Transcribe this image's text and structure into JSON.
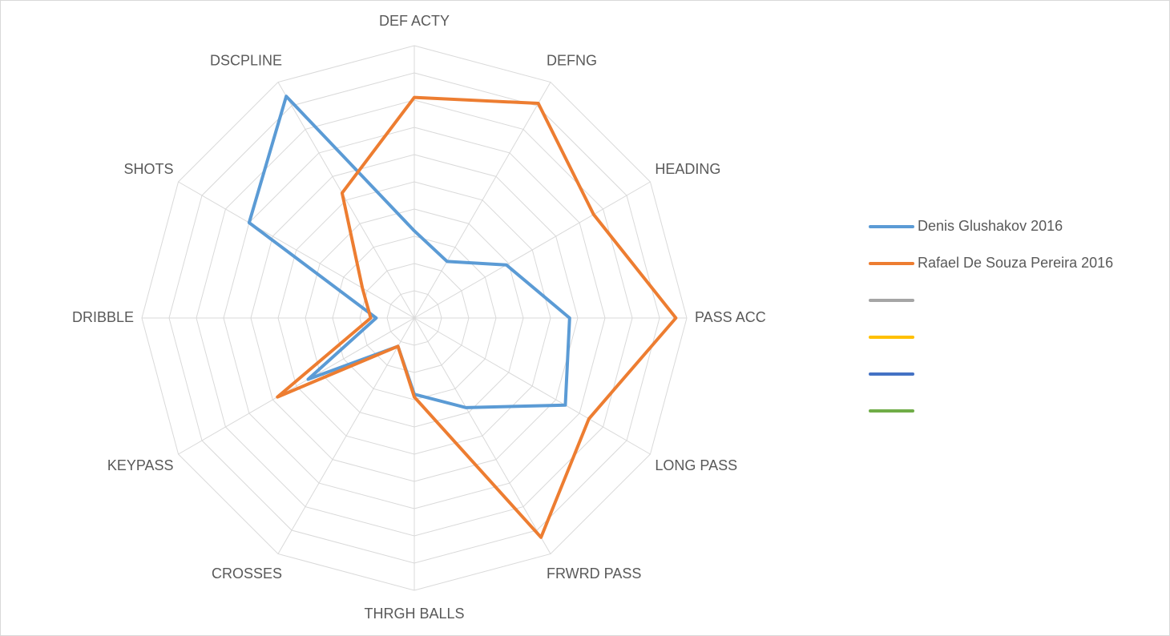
{
  "chart_data": {
    "type": "radar",
    "categories": [
      "DEF ACTY",
      "DEFNG",
      "HEADING",
      "PASS ACC",
      "LONG PASS",
      "FRWRD PASS",
      "THRGH BALLS",
      "CROSSES",
      "KEYPASS",
      "DRIBBLE",
      "SHOTS",
      "DSCPLINE"
    ],
    "ylim": [
      0,
      10
    ],
    "yticks": [
      1,
      2,
      3,
      4,
      5,
      6,
      7,
      8,
      9,
      10
    ],
    "grid": true,
    "legend": "right",
    "series": [
      {
        "name": "Denis Glushakov 2016",
        "color": "#5b9bd5",
        "values": [
          3.2,
          2.4,
          3.9,
          5.7,
          6.4,
          3.8,
          2.8,
          1.2,
          4.5,
          1.4,
          7.0,
          9.4
        ]
      },
      {
        "name": "Rafael De Souza Pereira 2016",
        "color": "#ed7d31",
        "values": [
          8.1,
          9.1,
          7.6,
          9.6,
          7.4,
          9.3,
          2.9,
          1.2,
          5.8,
          1.6,
          2.2,
          5.3
        ]
      },
      {
        "color": "#a5a5a5"
      },
      {
        "color": "#ffc000"
      },
      {
        "color": "#4472c4"
      },
      {
        "color": "#70ad47"
      }
    ]
  }
}
